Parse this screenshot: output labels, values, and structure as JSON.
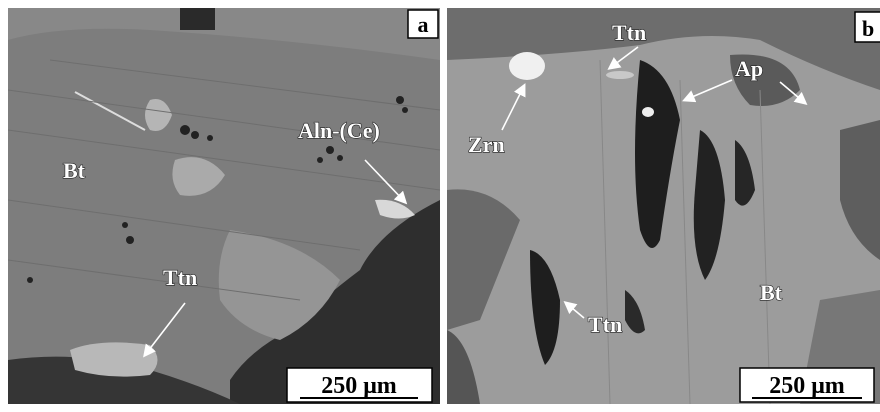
{
  "panels": [
    {
      "letter": "a",
      "labels": [
        "Aln-(Ce)",
        "Bt",
        "Ttn"
      ],
      "scale_bar": "250 μm"
    },
    {
      "letter": "b",
      "labels": [
        "Ttn",
        "Ap",
        "Zrn",
        "Ttn",
        "Bt"
      ],
      "scale_bar": "250 μm"
    }
  ]
}
